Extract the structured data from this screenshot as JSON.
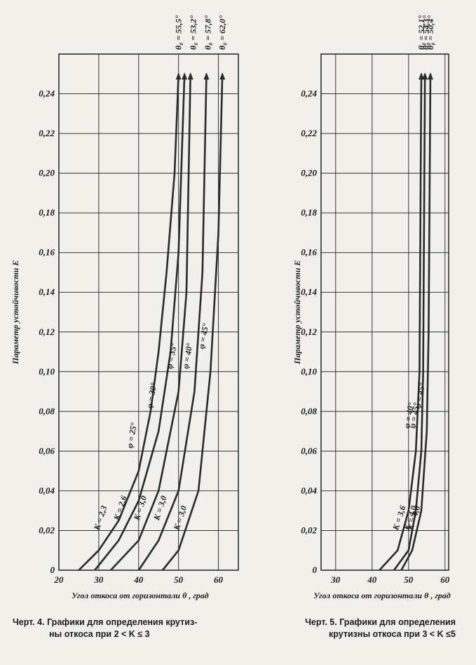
{
  "chart_data": [
    {
      "type": "line",
      "x_label": "Угол откоса от горизонтали θ , град",
      "y_label": "Параметр устойчивости E",
      "caption": [
        "Черт. 4. Графики для определения крутиз-",
        "ны откоса при 2 < K ≤ 3"
      ],
      "xlim": [
        20,
        65
      ],
      "ylim": [
        0,
        0.26
      ],
      "xticks": [
        20,
        30,
        40,
        50,
        60
      ],
      "yticks": [
        {
          "value": 0,
          "label": "0"
        },
        {
          "value": 0.02,
          "label": "0,02"
        },
        {
          "value": 0.04,
          "label": "0,04"
        },
        {
          "value": 0.06,
          "label": "0,06"
        },
        {
          "value": 0.08,
          "label": "0,08"
        },
        {
          "value": 0.1,
          "label": "0,10"
        },
        {
          "value": 0.12,
          "label": "0,12"
        },
        {
          "value": 0.14,
          "label": "0,14"
        },
        {
          "value": 0.16,
          "label": "0,16"
        },
        {
          "value": 0.18,
          "label": "0,18"
        },
        {
          "value": 0.2,
          "label": "0,20"
        },
        {
          "value": 0.22,
          "label": "0,22"
        },
        {
          "value": 0.24,
          "label": "0,24"
        }
      ],
      "grid": true,
      "top_labels": [
        "θ₀ = 55,5°",
        "θ₀ = 53,2°",
        "θ₀ = 57,8°",
        "θ₀ = 62,0°"
      ],
      "series": [
        {
          "name": "φ = 25°",
          "k_label": "K = 2,3",
          "color": "#2a2a2a",
          "x": [
            25,
            30,
            35,
            40,
            43,
            45,
            47,
            49,
            50
          ],
          "values": [
            0,
            0.01,
            0.025,
            0.05,
            0.08,
            0.11,
            0.15,
            0.2,
            0.25
          ]
        },
        {
          "name": "φ = 30°",
          "k_label": "K = 2,6",
          "color": "#2a2a2a",
          "x": [
            29,
            35,
            40,
            45,
            48,
            50,
            51.5
          ],
          "values": [
            0,
            0.015,
            0.035,
            0.07,
            0.11,
            0.16,
            0.25
          ]
        },
        {
          "name": "φ = 35°",
          "k_label": "K = 3,0",
          "color": "#2a2a2a",
          "x": [
            33,
            40,
            45,
            50,
            52,
            53
          ],
          "values": [
            0,
            0.015,
            0.04,
            0.09,
            0.14,
            0.25
          ]
        },
        {
          "name": "φ = 40°",
          "k_label": "K = 3,0",
          "color": "#2a2a2a",
          "x": [
            40,
            45,
            50,
            54,
            56,
            57
          ],
          "values": [
            0,
            0.015,
            0.04,
            0.09,
            0.15,
            0.25
          ]
        },
        {
          "name": "φ = 45°",
          "k_label": "K = 3,0",
          "color": "#2a2a2a",
          "x": [
            46,
            50,
            55,
            58,
            60,
            61
          ],
          "values": [
            0,
            0.01,
            0.04,
            0.1,
            0.17,
            0.25
          ]
        }
      ]
    },
    {
      "type": "line",
      "x_label": "Угол откоса от горизонтали θ , град",
      "y_label": "Параметр устойчивости E",
      "caption": [
        "Черт. 5.  Графики для определения",
        "крутизны откоса при 3 < K ≤5"
      ],
      "xlim": [
        26,
        61
      ],
      "ylim": [
        0,
        0.26
      ],
      "xticks": [
        30,
        40,
        50,
        60
      ],
      "yticks": [
        {
          "value": 0,
          "label": "0"
        },
        {
          "value": 0.02,
          "label": "0,02"
        },
        {
          "value": 0.04,
          "label": "0,04"
        },
        {
          "value": 0.06,
          "label": "0,06"
        },
        {
          "value": 0.08,
          "label": "0,08"
        },
        {
          "value": 0.1,
          "label": "0,10"
        },
        {
          "value": 0.12,
          "label": "0,12"
        },
        {
          "value": 0.14,
          "label": "0,14"
        },
        {
          "value": 0.16,
          "label": "0,16"
        },
        {
          "value": 0.18,
          "label": "0,18"
        },
        {
          "value": 0.2,
          "label": "0,20"
        },
        {
          "value": 0.22,
          "label": "0,22"
        },
        {
          "value": 0.24,
          "label": "0,24"
        }
      ],
      "grid": true,
      "top_labels": [
        "θ₀ = 52,1°",
        "θ₀ = 54,3°",
        "θ₀ = 50,4°"
      ],
      "series": [
        {
          "name": "φ = 40°",
          "k_label": "K = 3,6",
          "color": "#2a2a2a",
          "x": [
            42,
            47,
            50,
            52,
            53,
            53.5
          ],
          "values": [
            0,
            0.01,
            0.03,
            0.06,
            0.1,
            0.25
          ]
        },
        {
          "name": "φ = 45°",
          "k_label": "K = 4,0",
          "color": "#2a2a2a",
          "x": [
            46,
            50,
            52,
            53.5,
            54,
            54.5
          ],
          "values": [
            0,
            0.01,
            0.03,
            0.06,
            0.1,
            0.25
          ]
        },
        {
          "name": "φ = 45°",
          "k_label": "K = 4,6",
          "color": "#2a2a2a",
          "x": [
            48,
            51,
            53.5,
            55,
            55.5,
            56
          ],
          "values": [
            0,
            0.01,
            0.03,
            0.07,
            0.12,
            0.25
          ]
        }
      ]
    }
  ]
}
